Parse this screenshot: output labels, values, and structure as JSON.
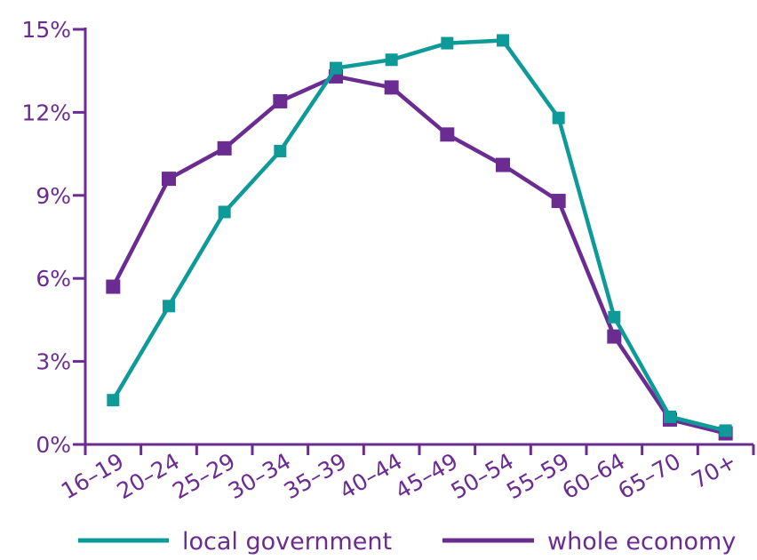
{
  "chart_data": {
    "type": "line",
    "categories": [
      "16–19",
      "20–24",
      "25–29",
      "30–34",
      "35–39",
      "40–44",
      "45–49",
      "50–54",
      "55–59",
      "60–64",
      "65–70",
      "70+"
    ],
    "series": [
      {
        "name": "local government",
        "color": "#0e9a98",
        "values": [
          1.6,
          5.0,
          8.4,
          10.6,
          13.6,
          13.9,
          14.5,
          14.6,
          11.8,
          4.6,
          1.0,
          0.5
        ]
      },
      {
        "name": "whole economy",
        "color": "#6b2c91",
        "values": [
          5.7,
          9.6,
          10.7,
          12.4,
          13.3,
          12.9,
          11.2,
          10.1,
          8.8,
          3.9,
          0.9,
          0.4
        ]
      }
    ],
    "yticks": [
      "0%",
      "3%",
      "6%",
      "9%",
      "12%",
      "15%"
    ],
    "ylim": [
      0,
      15
    ],
    "grid": false,
    "legend_position": "bottom"
  },
  "colors": {
    "axis": "#6b2c91",
    "text": "#6b2c91"
  }
}
